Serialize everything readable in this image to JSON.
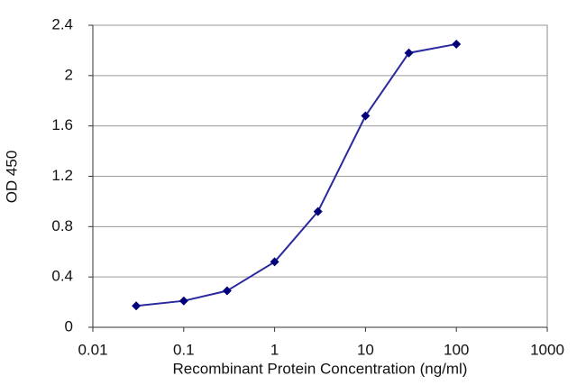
{
  "chart_data": {
    "type": "line",
    "x_label": "Recombinant Protein Concentration (ng/ml)",
    "y_label": "OD 450",
    "x": [
      0.03,
      0.1,
      0.3,
      1,
      3,
      10,
      30,
      100
    ],
    "values": [
      0.17,
      0.21,
      0.29,
      0.52,
      0.92,
      1.68,
      2.18,
      2.25
    ],
    "color": "#2a2a9e",
    "marker_color": "#00007a",
    "xscale": "log",
    "xlim": [
      0.01,
      1000
    ],
    "xticks": [
      0.01,
      0.1,
      1,
      10,
      100,
      1000
    ],
    "ylim": [
      0,
      2.4
    ],
    "yticks": [
      0,
      0.4,
      0.8,
      1.2,
      1.6,
      2,
      2.4
    ],
    "grid": true
  }
}
